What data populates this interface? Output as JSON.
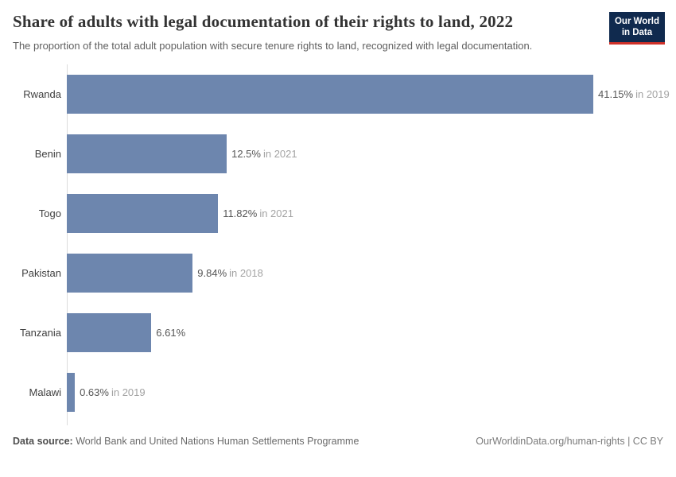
{
  "header": {
    "title": "Share of adults with legal documentation of their rights to land, 2022",
    "subtitle": "The proportion of the total adult population with secure tenure rights to land, recognized with legal documentation.",
    "logo": {
      "line1": "Our World",
      "line2": "in Data",
      "bg_color": "#102a4e",
      "stripe_color": "#cf3129",
      "text_color": "#ffffff"
    }
  },
  "chart_data": {
    "type": "bar",
    "orientation": "horizontal",
    "title": "Share of adults with legal documentation of their rights to land, 2022",
    "categories": [
      "Rwanda",
      "Benin",
      "Togo",
      "Pakistan",
      "Tanzania",
      "Malawi"
    ],
    "values": [
      41.15,
      12.5,
      11.82,
      9.84,
      6.61,
      0.63
    ],
    "value_labels": [
      "41.15%",
      "12.5%",
      "11.82%",
      "9.84%",
      "6.61%",
      "0.63%"
    ],
    "year_labels": [
      "in 2019",
      "in 2021",
      "in 2021",
      "in 2018",
      "",
      "in 2019"
    ],
    "xlabel": "",
    "ylabel": "",
    "xlim": [
      0,
      41.15
    ],
    "grid": false,
    "legend": false,
    "bar_color": "#6d86ae"
  },
  "footer": {
    "datasource_label": "Data source:",
    "datasource_text": "World Bank and United Nations Human Settlements Programme",
    "credit": "OurWorldinData.org/human-rights | CC BY"
  }
}
